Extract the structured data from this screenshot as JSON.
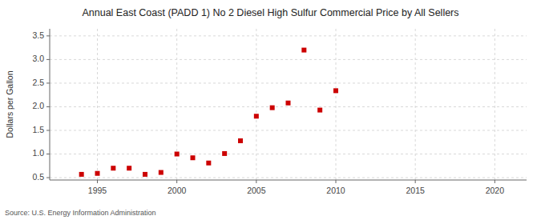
{
  "chart_data": {
    "type": "scatter",
    "title": "Annual East Coast (PADD 1) No 2 Diesel High Sulfur Commercial Price by All Sellers",
    "ylabel": "Dollars per Gallon",
    "source": "Source: U.S. Energy Information Administration",
    "x": [
      1994,
      1995,
      1996,
      1997,
      1998,
      1999,
      2000,
      2001,
      2002,
      2003,
      2004,
      2005,
      2006,
      2007,
      2008,
      2009,
      2010
    ],
    "values": [
      0.57,
      0.59,
      0.7,
      0.7,
      0.57,
      0.61,
      1.0,
      0.92,
      0.81,
      1.01,
      1.28,
      1.8,
      1.98,
      2.08,
      3.2,
      1.93,
      2.34
    ],
    "color": "#cc0000",
    "marker": "square",
    "xlim": [
      1992,
      2022
    ],
    "ylim": [
      0.45,
      3.65
    ],
    "xticks": [
      1995,
      2000,
      2005,
      2010,
      2015,
      2020
    ],
    "yticks": [
      0.5,
      {
        "value": 1.0,
        "label": "1.0"
      },
      1.5,
      {
        "value": 2.0,
        "label": "2.0"
      },
      2.5,
      {
        "value": 3.0,
        "label": "3.0"
      },
      3.5
    ],
    "grid": true
  }
}
